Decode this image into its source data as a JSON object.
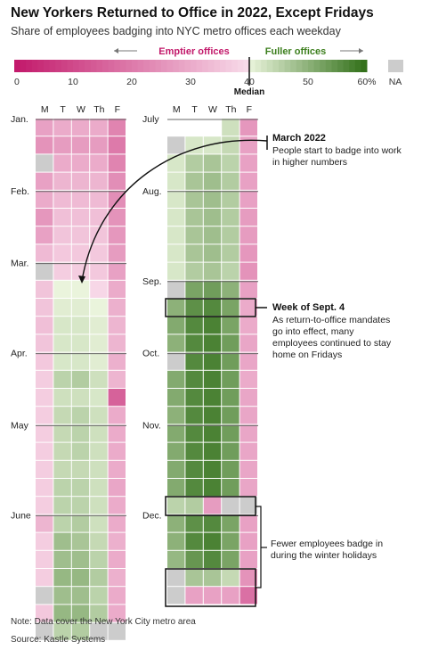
{
  "title": "New Yorkers Returned to Office in 2022, Except Fridays",
  "subtitle": "Share of employees badging into NYC metro offices each weekday",
  "legend": {
    "emptier": "Emptier offices",
    "fuller": "Fuller offices",
    "ticks": [
      "0",
      "10",
      "20",
      "30",
      "40",
      "50",
      "60%"
    ],
    "median": "Median",
    "na": "NA"
  },
  "days": [
    "M",
    "T",
    "W",
    "Th",
    "F"
  ],
  "months_left": [
    "Jan.",
    "Feb.",
    "Mar.",
    "Apr.",
    "May",
    "June"
  ],
  "months_right": [
    "July",
    "Aug.",
    "Sep.",
    "Oct.",
    "Nov.",
    "Dec."
  ],
  "annotations": {
    "march_title": "March 2022",
    "march_line1": "People start to badge into work",
    "march_line2": "in higher numbers",
    "sept_title": "Week of Sept. 4",
    "sept_line1": "As return-to-office mandates",
    "sept_line2": "go into effect, many",
    "sept_line3": "employees continued to stay",
    "sept_line4": "home on Fridays",
    "winter_line1": "Fewer employees badge in",
    "winter_line2": "during the winter holidays"
  },
  "note": "Note: Data cover the New York City metro area",
  "source": "Source: Kastle Systems",
  "colors": {
    "pink_dark": "#c2186a",
    "pink_light": "#f8dcea",
    "green_light": "#eaf4dc",
    "green_dark": "#2f6e16",
    "na": "#cccccc"
  },
  "chart_data": {
    "type": "heatmap",
    "title": "New Yorkers Returned to Office in 2022, Except Fridays",
    "subtitle": "Share of employees badging into NYC metro offices each weekday",
    "x": [
      "M",
      "T",
      "W",
      "Th",
      "F"
    ],
    "value_range": [
      0,
      60
    ],
    "median": 40,
    "units": "%",
    "na_value": null,
    "columns": [
      {
        "label_rows": {
          "Jan.": 0,
          "Feb.": 4,
          "Mar.": 8,
          "Apr.": 13,
          "May": 17,
          "June": 22
        },
        "weeks": [
          [
            28,
            30,
            30,
            30,
            22
          ],
          [
            25,
            27,
            27,
            27,
            20
          ],
          [
            null,
            30,
            30,
            30,
            22
          ],
          [
            28,
            32,
            32,
            32,
            24
          ],
          [
            30,
            33,
            33,
            33,
            24
          ],
          [
            26,
            34,
            34,
            34,
            25
          ],
          [
            28,
            35,
            35,
            35,
            26
          ],
          [
            33,
            36,
            36,
            36,
            27
          ],
          [
            null,
            37,
            37,
            36,
            28
          ],
          [
            35,
            40,
            40,
            39,
            30
          ],
          [
            35,
            41,
            41,
            40,
            31
          ],
          [
            34,
            42,
            42,
            41,
            32
          ],
          [
            35,
            42,
            42,
            41,
            32
          ],
          [
            36,
            42,
            42,
            41,
            31
          ],
          [
            37,
            45,
            46,
            43,
            32
          ],
          [
            37,
            43,
            43,
            42,
            15
          ],
          [
            37,
            44,
            45,
            43,
            30
          ],
          [
            37,
            44,
            45,
            43,
            30
          ],
          [
            37,
            44,
            45,
            43,
            30
          ],
          [
            37,
            44,
            44,
            43,
            30
          ],
          [
            37,
            45,
            45,
            43,
            29
          ],
          [
            37,
            45,
            45,
            43,
            30
          ],
          [
            32,
            45,
            46,
            43,
            30
          ],
          [
            37,
            48,
            47,
            44,
            31
          ],
          [
            37,
            48,
            48,
            45,
            30
          ],
          [
            37,
            49,
            49,
            46,
            31
          ],
          [
            null,
            48,
            48,
            45,
            30
          ],
          [
            36,
            49,
            49,
            46,
            30
          ],
          [
            null,
            45,
            46,
            null,
            null
          ]
        ]
      },
      {
        "label_rows": {
          "July": 0,
          "Aug.": 4,
          "Sep.": 9,
          "Oct.": 13,
          "Nov.": 17,
          "Dec.": 22
        },
        "weeks": [
          [
            null,
            null,
            null,
            43,
            26
          ],
          [
            null,
            42,
            42,
            44,
            28
          ],
          [
            42,
            46,
            47,
            45,
            28
          ],
          [
            42,
            47,
            48,
            46,
            28
          ],
          [
            42,
            47,
            48,
            46,
            28
          ],
          [
            42,
            47,
            48,
            46,
            27
          ],
          [
            42,
            47,
            48,
            46,
            27
          ],
          [
            42,
            47,
            48,
            46,
            26
          ],
          [
            42,
            46,
            47,
            45,
            25
          ],
          [
            null,
            52,
            53,
            50,
            28
          ],
          [
            50,
            55,
            56,
            52,
            30
          ],
          [
            51,
            56,
            57,
            52,
            30
          ],
          [
            50,
            56,
            57,
            53,
            29
          ],
          [
            null,
            56,
            57,
            53,
            29
          ],
          [
            51,
            56,
            57,
            53,
            30
          ],
          [
            51,
            56,
            57,
            53,
            29
          ],
          [
            50,
            56,
            57,
            53,
            29
          ],
          [
            51,
            56,
            57,
            53,
            29
          ],
          [
            51,
            56,
            57,
            53,
            29
          ],
          [
            51,
            56,
            57,
            53,
            29
          ],
          [
            51,
            56,
            57,
            53,
            29
          ],
          [
            45,
            46,
            27,
            null,
            null
          ],
          [
            50,
            55,
            56,
            52,
            28
          ],
          [
            50,
            56,
            57,
            52,
            28
          ],
          [
            49,
            54,
            56,
            52,
            28
          ],
          [
            null,
            47,
            47,
            44,
            25
          ],
          [
            null,
            28,
            28,
            28,
            18
          ]
        ]
      }
    ]
  }
}
